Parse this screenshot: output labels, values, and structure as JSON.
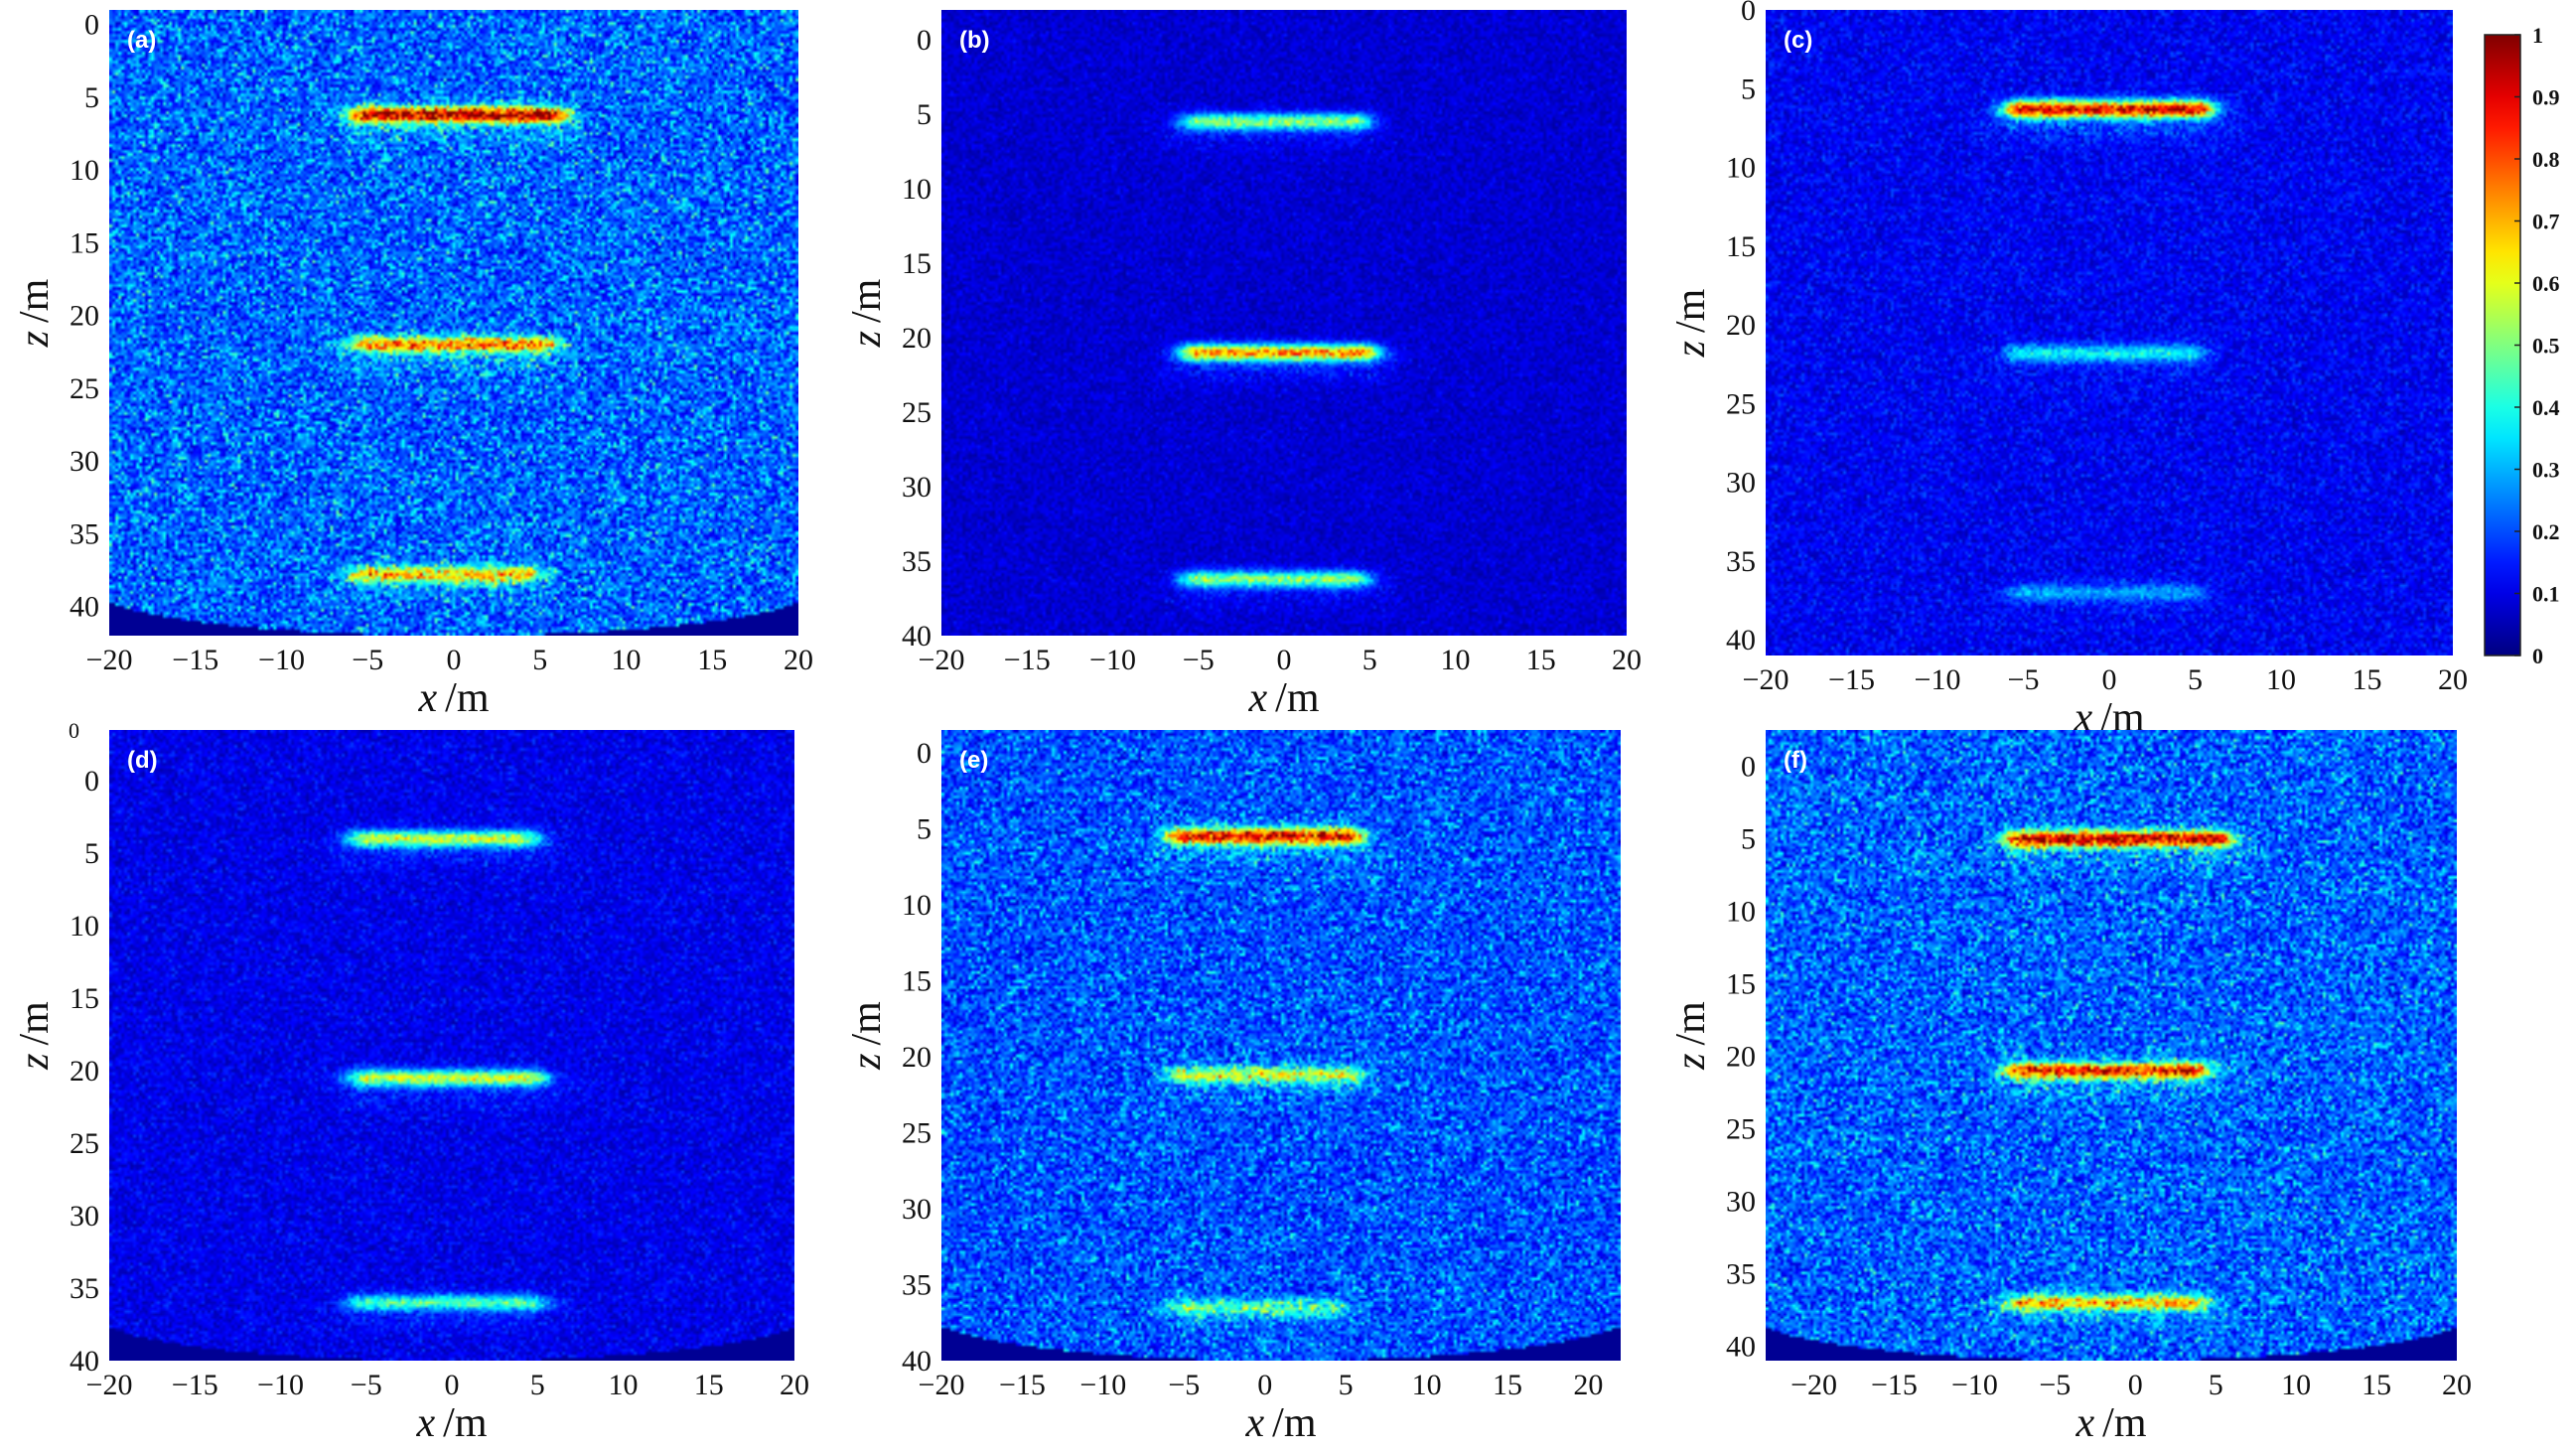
{
  "chart_data": [
    {
      "panel": "(a)",
      "type": "heatmap",
      "xlabel_var": "x",
      "xlabel_unit": "/m",
      "ylabel_var": "z",
      "ylabel_unit": "/m",
      "xticks": [
        "−20",
        "−15",
        "−10",
        "−5",
        "0",
        "5",
        "10",
        "15",
        "20"
      ],
      "yticks": [
        "0",
        "5",
        "10",
        "15",
        "20",
        "25",
        "30",
        "35",
        "40"
      ],
      "xlim": [
        -20,
        20
      ],
      "ylim": [
        -1,
        42
      ],
      "background_level": 0.17,
      "noise": 0.22,
      "bowl_mask": true,
      "reflectors": [
        {
          "x0": -5,
          "x1": 5.5,
          "z": 6.2,
          "peak": 0.85
        },
        {
          "x0": -5,
          "x1": 5,
          "z": 22,
          "peak": 0.6
        },
        {
          "x0": -5,
          "x1": 4,
          "z": 37.8,
          "peak": 0.55
        }
      ]
    },
    {
      "panel": "(b)",
      "type": "heatmap",
      "xlabel_var": "x",
      "xlabel_unit": "/m",
      "ylabel_var": "z",
      "ylabel_unit": "/m",
      "xticks": [
        "−20",
        "−15",
        "−10",
        "−5",
        "0",
        "5",
        "10",
        "15",
        "20"
      ],
      "yticks": [
        "0",
        "5",
        "10",
        "15",
        "20",
        "25",
        "30",
        "35",
        "40"
      ],
      "xlim": [
        -20,
        20
      ],
      "ylim": [
        -2,
        40
      ],
      "background_level": 0.07,
      "noise": 0.04,
      "bowl_mask": false,
      "reflectors": [
        {
          "x0": -5,
          "x1": 4,
          "z": 5.5,
          "peak": 0.5
        },
        {
          "x0": -5,
          "x1": 4.5,
          "z": 21,
          "peak": 0.75
        },
        {
          "x0": -5,
          "x1": 4,
          "z": 36.2,
          "peak": 0.5
        }
      ]
    },
    {
      "panel": "(c)",
      "type": "heatmap",
      "xlabel_var": "x",
      "xlabel_unit": "/m",
      "ylabel_var": "z",
      "ylabel_unit": "/m",
      "xticks": [
        "−20",
        "−15",
        "−10",
        "−5",
        "0",
        "5",
        "10",
        "15",
        "20"
      ],
      "yticks": [
        "0",
        "5",
        "10",
        "15",
        "20",
        "25",
        "30",
        "35",
        "40"
      ],
      "xlim": [
        -20,
        20
      ],
      "ylim": [
        0,
        41
      ],
      "background_level": 0.1,
      "noise": 0.06,
      "bowl_mask": false,
      "reflectors": [
        {
          "x0": -5,
          "x1": 5,
          "z": 6.3,
          "peak": 0.92
        },
        {
          "x0": -5,
          "x1": 4.5,
          "z": 21.8,
          "peak": 0.3
        },
        {
          "x0": -5,
          "x1": 4.5,
          "z": 37,
          "peak": 0.2
        }
      ]
    },
    {
      "panel": "(d)",
      "type": "heatmap",
      "xlabel_var": "x",
      "xlabel_unit": "/m",
      "ylabel_var": "z",
      "ylabel_unit": "/m",
      "xticks": [
        "−20",
        "−15",
        "−10",
        "−5",
        "0",
        "5",
        "10",
        "15",
        "20"
      ],
      "yticks": [
        "0",
        "5",
        "10",
        "15",
        "20",
        "25",
        "30",
        "35",
        "40"
      ],
      "extra_ytick": "0",
      "xlim": [
        -20,
        20
      ],
      "ylim": [
        -3.5,
        40
      ],
      "background_level": 0.09,
      "noise": 0.06,
      "bowl_mask": true,
      "reflectors": [
        {
          "x0": -5,
          "x1": 4,
          "z": 4,
          "peak": 0.55
        },
        {
          "x0": -5,
          "x1": 4.5,
          "z": 20.5,
          "peak": 0.55
        },
        {
          "x0": -5,
          "x1": 4.5,
          "z": 36,
          "peak": 0.4
        }
      ]
    },
    {
      "panel": "(e)",
      "type": "heatmap",
      "xlabel_var": "x",
      "xlabel_unit": "/m",
      "ylabel_var": "z",
      "ylabel_unit": "/m",
      "xticks": [
        "−20",
        "−15",
        "−10",
        "−5",
        "0",
        "5",
        "10",
        "15",
        "20"
      ],
      "yticks": [
        "0",
        "5",
        "10",
        "15",
        "20",
        "25",
        "30",
        "35",
        "40"
      ],
      "xlim": [
        -20,
        22
      ],
      "ylim": [
        -1.5,
        40
      ],
      "background_level": 0.16,
      "noise": 0.18,
      "bowl_mask": true,
      "reflectors": [
        {
          "x0": -5,
          "x1": 5,
          "z": 5.5,
          "peak": 0.8
        },
        {
          "x0": -5,
          "x1": 5,
          "z": 21.2,
          "peak": 0.45
        },
        {
          "x0": -5,
          "x1": 4,
          "z": 36.5,
          "peak": 0.3
        }
      ]
    },
    {
      "panel": "(f)",
      "type": "heatmap",
      "xlabel_var": "x",
      "xlabel_unit": "/m",
      "ylabel_var": "z",
      "ylabel_unit": "/m",
      "xticks": [
        "−20",
        "−15",
        "−10",
        "−5",
        "0",
        "5",
        "10",
        "15",
        "20"
      ],
      "yticks": [
        "0",
        "5",
        "10",
        "15",
        "20",
        "25",
        "30",
        "35",
        "40"
      ],
      "xlim": [
        -23,
        20
      ],
      "ylim": [
        -2.5,
        41
      ],
      "background_level": 0.17,
      "noise": 0.2,
      "bowl_mask": true,
      "reflectors": [
        {
          "x0": -7,
          "x1": 5,
          "z": 5,
          "peak": 0.85
        },
        {
          "x0": -7,
          "x1": 3.5,
          "z": 21,
          "peak": 0.75
        },
        {
          "x0": -7,
          "x1": 3.5,
          "z": 37,
          "peak": 0.55
        }
      ]
    }
  ],
  "colorbar": {
    "colormap": "jet",
    "range": [
      0,
      1
    ],
    "ticks": [
      "0",
      "0.1",
      "0.2",
      "0.3",
      "0.4",
      "0.5",
      "0.6",
      "0.7",
      "0.8",
      "0.9",
      "1"
    ]
  }
}
